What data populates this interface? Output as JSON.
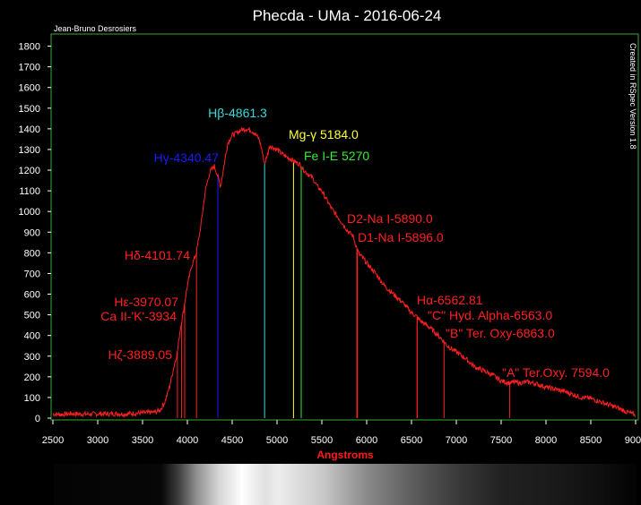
{
  "chart_data": {
    "type": "line",
    "title": "Phecda - UMa - 2016-06-24",
    "author": "Jean-Bruno Desrosiers",
    "credit": "Created in RSpec Version 1.8",
    "xlabel": "Angstroms",
    "ylabel": "",
    "xlim": [
      2500,
      9000
    ],
    "ylim": [
      0,
      1850
    ],
    "x_ticks": [
      2500,
      3000,
      3500,
      4000,
      4500,
      5000,
      5500,
      6000,
      6500,
      7000,
      7500,
      8000,
      8500,
      9000
    ],
    "y_ticks": [
      0,
      100,
      200,
      300,
      400,
      500,
      600,
      700,
      800,
      900,
      1000,
      1100,
      1200,
      1300,
      1400,
      1500,
      1600,
      1700,
      1800
    ],
    "colors": {
      "spectrum": "#ff2020",
      "axis": "#33aa33",
      "background": "#000000"
    },
    "series": [
      {
        "x": [
          2500,
          2600,
          2700,
          2800,
          2900,
          3000,
          3100,
          3200,
          3300,
          3400,
          3500,
          3600,
          3650,
          3700,
          3750,
          3800,
          3850,
          3889,
          3920,
          3950,
          3970,
          4000,
          4050,
          4101,
          4150,
          4200,
          4250,
          4300,
          4340,
          4370,
          4400,
          4450,
          4500,
          4550,
          4600,
          4650,
          4700,
          4750,
          4800,
          4830,
          4861,
          4890,
          4920,
          4950,
          5000,
          5050,
          5100,
          5150,
          5200,
          5250,
          5300,
          5350,
          5400,
          5450,
          5500,
          5550,
          5600,
          5650,
          5700,
          5750,
          5800,
          5850,
          5890,
          5920,
          5950,
          6000,
          6100,
          6200,
          6300,
          6400,
          6500,
          6563,
          6600,
          6700,
          6800,
          6863,
          6900,
          7000,
          7100,
          7200,
          7300,
          7400,
          7500,
          7594,
          7650,
          7700,
          7800,
          7900,
          8000,
          8100,
          8200,
          8300,
          8400,
          8500,
          8600,
          8700,
          8800,
          8900,
          9000
        ],
        "values": [
          20,
          18,
          22,
          20,
          19,
          21,
          20,
          22,
          20,
          23,
          25,
          28,
          30,
          40,
          80,
          150,
          250,
          320,
          430,
          500,
          560,
          640,
          740,
          800,
          930,
          1100,
          1190,
          1220,
          1170,
          1120,
          1200,
          1330,
          1370,
          1380,
          1395,
          1400,
          1395,
          1380,
          1350,
          1300,
          1230,
          1270,
          1320,
          1310,
          1300,
          1280,
          1265,
          1255,
          1240,
          1230,
          1200,
          1180,
          1160,
          1120,
          1100,
          1060,
          1020,
          990,
          960,
          930,
          900,
          880,
          820,
          790,
          780,
          750,
          700,
          640,
          600,
          560,
          510,
          490,
          470,
          440,
          400,
          370,
          350,
          320,
          290,
          250,
          230,
          210,
          180,
          170,
          175,
          170,
          175,
          165,
          150,
          140,
          130,
          115,
          100,
          95,
          80,
          65,
          50,
          30,
          15
        ]
      }
    ],
    "lines": [
      {
        "label": "Hζ-3889.05",
        "wavelength": 3889.05,
        "color": "#ff2020"
      },
      {
        "label": "Ca II-'K'-3934",
        "wavelength": 3934,
        "color": "#ff2020"
      },
      {
        "label": "Hε-3970.07",
        "wavelength": 3970.07,
        "color": "#ff2020"
      },
      {
        "label": "Hδ-4101.74",
        "wavelength": 4101.74,
        "color": "#ff2020"
      },
      {
        "label": "Hγ-4340.47",
        "wavelength": 4340.47,
        "color": "#1a1aff"
      },
      {
        "label": "Hβ-4861.3",
        "wavelength": 4861.3,
        "color": "#33dddd"
      },
      {
        "label": "Mg-γ 5184.0",
        "wavelength": 5184.0,
        "color": "#ffff33"
      },
      {
        "label": "Fe I-E 5270",
        "wavelength": 5270,
        "color": "#33ee33"
      },
      {
        "label": "D2-Na I-5890.0",
        "wavelength": 5890.0,
        "color": "#ff2020"
      },
      {
        "label": "D1-Na I-5896.0",
        "wavelength": 5896.0,
        "color": "#ff2020"
      },
      {
        "label": "Hα-6562.81",
        "wavelength": 6562.81,
        "color": "#ff2020"
      },
      {
        "label": "\"C\" Hyd. Alpha-6563.0",
        "wavelength": 6563.0,
        "color": "#ff2020"
      },
      {
        "label": "\"B\" Ter. Oxy-6863.0",
        "wavelength": 6863.0,
        "color": "#ff2020"
      },
      {
        "label": "\"A\" Ter.Oxy. 7594.0",
        "wavelength": 7594.0,
        "color": "#ff2020"
      }
    ],
    "grid": false,
    "spectrum_strip": true
  }
}
